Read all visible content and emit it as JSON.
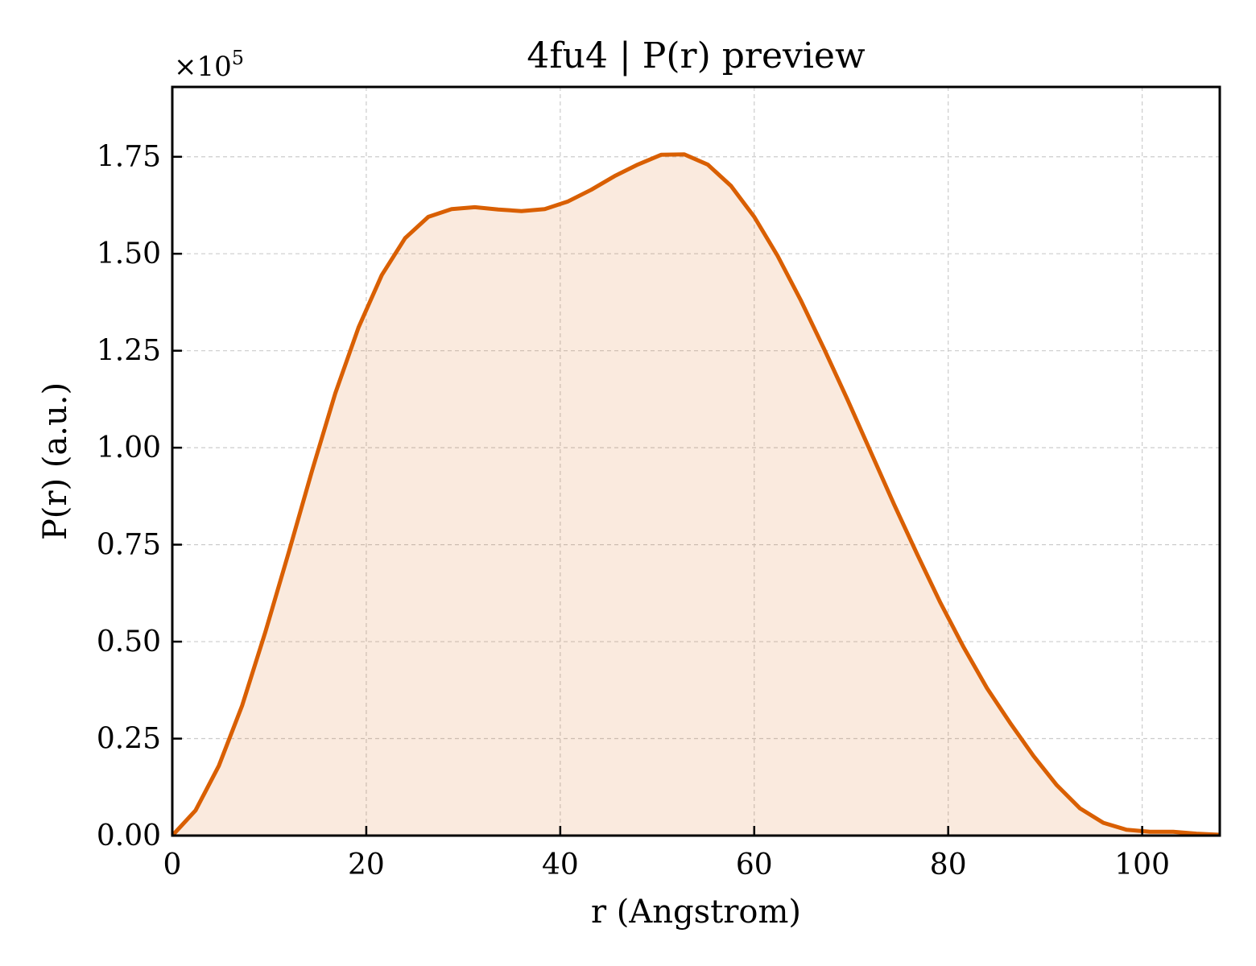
{
  "chart_data": {
    "type": "area",
    "title": "4fu4 | P(r) preview",
    "xlabel": "r (Angstrom)",
    "ylabel": "P(r) (a.u.)",
    "y_scale_label": "×10",
    "y_scale_exponent": "5",
    "xlim": [
      0,
      108
    ],
    "ylim": [
      0,
      1.93
    ],
    "x_ticks": [
      0,
      20,
      40,
      60,
      80,
      100
    ],
    "x_tick_labels": [
      "0",
      "20",
      "40",
      "60",
      "80",
      "100"
    ],
    "y_ticks": [
      0,
      0.25,
      0.5,
      0.75,
      1.0,
      1.25,
      1.5,
      1.75
    ],
    "y_tick_labels": [
      "0.00",
      "0.25",
      "0.50",
      "0.75",
      "1.00",
      "1.25",
      "1.50",
      "1.75"
    ],
    "grid": true,
    "colors": {
      "line": "#d95f02",
      "fill": "#d95f02",
      "fill_opacity": 0.13,
      "grid": "#cccccc",
      "axes": "#000000"
    },
    "series": [
      {
        "x": [
          0,
          2.4,
          4.8,
          7.2,
          9.6,
          12.0,
          14.4,
          16.8,
          19.2,
          21.6,
          24.0,
          26.4,
          28.8,
          31.2,
          33.6,
          36.0,
          38.4,
          40.8,
          43.2,
          45.6,
          48.0,
          50.4,
          52.8,
          55.2,
          57.6,
          60.0,
          62.4,
          64.8,
          67.2,
          69.6,
          72.0,
          74.4,
          76.8,
          79.2,
          81.6,
          84.0,
          86.4,
          88.8,
          91.2,
          93.6,
          96.0,
          98.4,
          100.8,
          103.2,
          105.6,
          108.0
        ],
        "values": [
          0,
          0.065,
          0.18,
          0.335,
          0.525,
          0.73,
          0.94,
          1.14,
          1.31,
          1.445,
          1.54,
          1.595,
          1.615,
          1.62,
          1.614,
          1.61,
          1.615,
          1.635,
          1.665,
          1.7,
          1.73,
          1.755,
          1.756,
          1.73,
          1.675,
          1.595,
          1.495,
          1.38,
          1.255,
          1.125,
          0.99,
          0.855,
          0.725,
          0.6,
          0.485,
          0.38,
          0.29,
          0.205,
          0.13,
          0.07,
          0.033,
          0.015,
          0.01,
          0.01,
          0.005,
          0.002
        ]
      }
    ]
  }
}
